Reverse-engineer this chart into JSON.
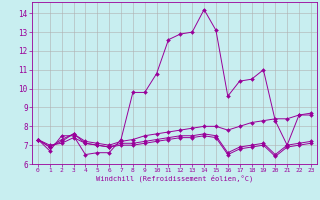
{
  "xlabel": "Windchill (Refroidissement éolien,°C)",
  "background_color": "#c8eef0",
  "grid_color": "#b0b0b0",
  "line_color": "#990099",
  "xlim": [
    -0.5,
    23.5
  ],
  "ylim": [
    6.0,
    14.6
  ],
  "xticks": [
    0,
    1,
    2,
    3,
    4,
    5,
    6,
    7,
    8,
    9,
    10,
    11,
    12,
    13,
    14,
    15,
    16,
    17,
    18,
    19,
    20,
    21,
    22,
    23
  ],
  "yticks": [
    6,
    7,
    8,
    9,
    10,
    11,
    12,
    13,
    14
  ],
  "series": [
    [
      7.3,
      6.7,
      7.5,
      7.5,
      6.5,
      6.6,
      6.6,
      7.3,
      9.8,
      9.8,
      10.8,
      12.6,
      12.9,
      13.0,
      14.2,
      13.1,
      9.6,
      10.4,
      10.5,
      11.0,
      8.3,
      7.0,
      8.6,
      8.6
    ],
    [
      7.3,
      6.9,
      7.3,
      7.6,
      7.2,
      7.1,
      7.0,
      7.2,
      7.3,
      7.5,
      7.6,
      7.7,
      7.8,
      7.9,
      8.0,
      8.0,
      7.8,
      8.0,
      8.2,
      8.3,
      8.4,
      8.4,
      8.6,
      8.7
    ],
    [
      7.3,
      7.0,
      7.1,
      7.4,
      7.1,
      7.0,
      6.9,
      7.1,
      7.1,
      7.2,
      7.3,
      7.4,
      7.5,
      7.5,
      7.6,
      7.5,
      6.6,
      6.9,
      7.0,
      7.1,
      6.5,
      7.0,
      7.1,
      7.2
    ],
    [
      7.3,
      6.9,
      7.2,
      7.6,
      7.1,
      7.0,
      6.9,
      7.0,
      7.0,
      7.1,
      7.2,
      7.3,
      7.4,
      7.4,
      7.5,
      7.4,
      6.5,
      6.8,
      6.9,
      7.0,
      6.4,
      6.9,
      7.0,
      7.1
    ]
  ]
}
